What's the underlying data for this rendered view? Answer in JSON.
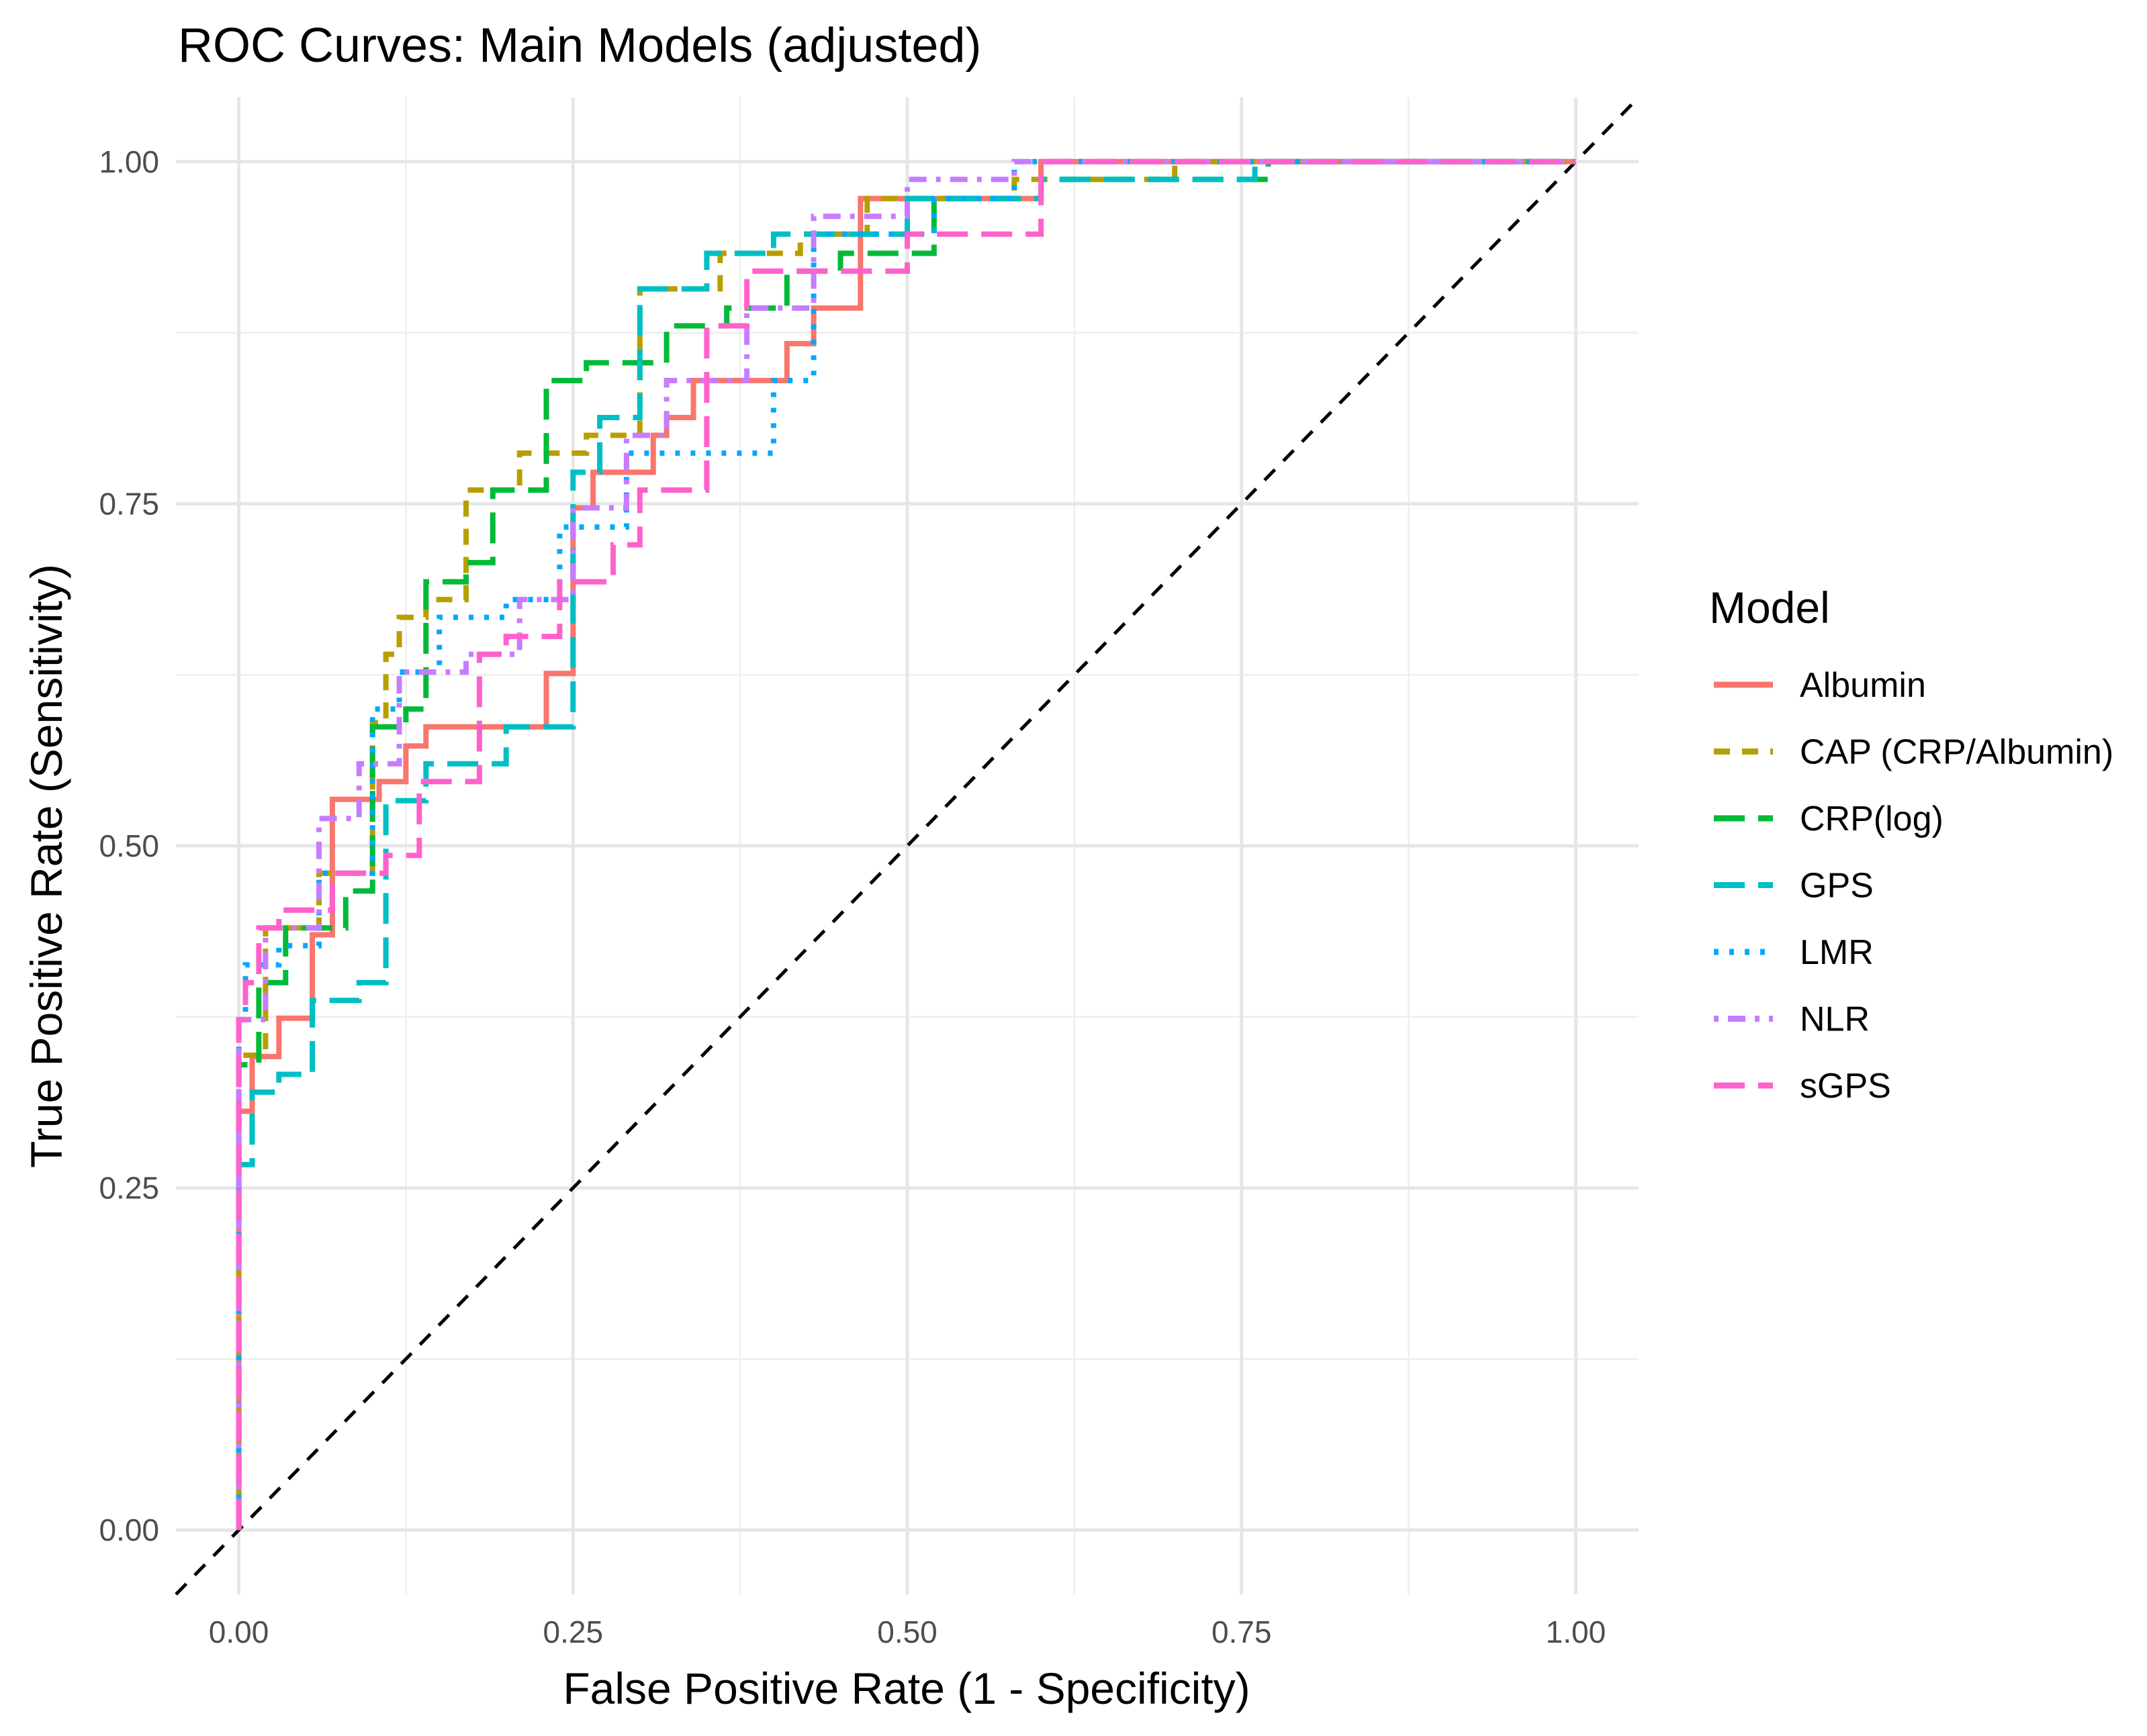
{
  "chart_data": {
    "type": "line",
    "title": "ROC Curves: Main Models (adjusted)",
    "xlabel": "False Positive Rate (1 - Specificity)",
    "ylabel": "True Positive Rate (Sensitivity)",
    "xlim": [
      -0.047,
      1.047
    ],
    "ylim": [
      -0.047,
      1.047
    ],
    "x_ticks": [
      0,
      0.25,
      0.5,
      0.75,
      1
    ],
    "x_tick_labels": [
      "0.00",
      "0.25",
      "0.50",
      "0.75",
      "1.00"
    ],
    "y_ticks": [
      0,
      0.25,
      0.5,
      0.75,
      1
    ],
    "y_tick_labels": [
      "0.00",
      "0.25",
      "0.50",
      "0.75",
      "1.00"
    ],
    "grid": true,
    "legend_title": "Model",
    "legend_position": "right",
    "reference_line": {
      "x": [
        -0.047,
        1.047
      ],
      "y": [
        -0.047,
        1.047
      ],
      "color": "#000000",
      "style": "dashed"
    },
    "series": [
      {
        "name": "Albumin",
        "color": "#F8766D",
        "linetype": "solid",
        "x": [
          0,
          0,
          0.01,
          0.01,
          0.03,
          0.03,
          0.055,
          0.055,
          0.07,
          0.07,
          0.105,
          0.105,
          0.125,
          0.125,
          0.14,
          0.14,
          0.23,
          0.23,
          0.25,
          0.25,
          0.265,
          0.265,
          0.31,
          0.31,
          0.32,
          0.32,
          0.34,
          0.34,
          0.41,
          0.41,
          0.43,
          0.43,
          0.465,
          0.465,
          0.6,
          0.6,
          1.0
        ],
        "y": [
          0,
          0.306,
          0.306,
          0.346,
          0.346,
          0.374,
          0.374,
          0.435,
          0.435,
          0.534,
          0.534,
          0.547,
          0.547,
          0.573,
          0.573,
          0.587,
          0.587,
          0.626,
          0.626,
          0.747,
          0.747,
          0.773,
          0.773,
          0.8,
          0.8,
          0.813,
          0.813,
          0.84,
          0.84,
          0.867,
          0.867,
          0.893,
          0.893,
          0.973,
          0.973,
          1.0,
          1.0
        ]
      },
      {
        "name": "CAP (CRP/Albumin)",
        "color": "#B79F00",
        "linetype": "dashed",
        "x": [
          0,
          0,
          0.02,
          0.02,
          0.06,
          0.06,
          0.1,
          0.1,
          0.11,
          0.11,
          0.12,
          0.12,
          0.14,
          0.14,
          0.17,
          0.17,
          0.21,
          0.21,
          0.26,
          0.26,
          0.3,
          0.3,
          0.36,
          0.36,
          0.42,
          0.42,
          0.47,
          0.47,
          0.58,
          0.58,
          0.7,
          0.7,
          1.0
        ],
        "y": [
          0,
          0.347,
          0.347,
          0.44,
          0.44,
          0.48,
          0.48,
          0.59,
          0.59,
          0.64,
          0.64,
          0.667,
          0.667,
          0.68,
          0.68,
          0.76,
          0.76,
          0.787,
          0.787,
          0.8,
          0.8,
          0.907,
          0.907,
          0.933,
          0.933,
          0.947,
          0.947,
          0.973,
          0.973,
          0.987,
          0.987,
          1.0,
          1.0
        ]
      },
      {
        "name": "CRP(log)",
        "color": "#00BA38",
        "linetype": "longdash",
        "x": [
          0,
          0,
          0.015,
          0.015,
          0.035,
          0.035,
          0.08,
          0.08,
          0.1,
          0.1,
          0.125,
          0.125,
          0.14,
          0.14,
          0.17,
          0.17,
          0.19,
          0.19,
          0.23,
          0.23,
          0.26,
          0.26,
          0.32,
          0.32,
          0.365,
          0.365,
          0.41,
          0.41,
          0.45,
          0.45,
          0.52,
          0.52,
          0.6,
          0.6,
          0.77,
          0.77,
          1.0
        ],
        "y": [
          0,
          0.34,
          0.34,
          0.4,
          0.4,
          0.44,
          0.44,
          0.467,
          0.467,
          0.587,
          0.587,
          0.6,
          0.6,
          0.693,
          0.693,
          0.707,
          0.707,
          0.76,
          0.76,
          0.84,
          0.84,
          0.853,
          0.853,
          0.88,
          0.88,
          0.893,
          0.893,
          0.92,
          0.92,
          0.933,
          0.933,
          0.973,
          0.973,
          0.987,
          0.987,
          1.0,
          1.0
        ]
      },
      {
        "name": "GPS",
        "color": "#00BFC4",
        "linetype": "longdash",
        "x": [
          0,
          0,
          0.01,
          0.01,
          0.03,
          0.03,
          0.055,
          0.055,
          0.09,
          0.09,
          0.11,
          0.11,
          0.14,
          0.14,
          0.2,
          0.2,
          0.25,
          0.25,
          0.27,
          0.27,
          0.3,
          0.3,
          0.35,
          0.35,
          0.4,
          0.4,
          0.5,
          0.5,
          0.6,
          0.6,
          0.76,
          0.76,
          1.0
        ],
        "y": [
          0,
          0.267,
          0.267,
          0.32,
          0.32,
          0.333,
          0.333,
          0.387,
          0.387,
          0.4,
          0.4,
          0.533,
          0.533,
          0.56,
          0.56,
          0.587,
          0.587,
          0.773,
          0.773,
          0.813,
          0.813,
          0.907,
          0.907,
          0.933,
          0.933,
          0.947,
          0.947,
          0.973,
          0.973,
          0.987,
          0.987,
          1.0,
          1.0
        ]
      },
      {
        "name": "LMR",
        "color": "#00A9FF",
        "linetype": "dotted",
        "x": [
          0,
          0,
          0.005,
          0.005,
          0.03,
          0.03,
          0.06,
          0.06,
          0.1,
          0.1,
          0.12,
          0.12,
          0.15,
          0.15,
          0.2,
          0.2,
          0.24,
          0.24,
          0.29,
          0.29,
          0.32,
          0.32,
          0.4,
          0.4,
          0.43,
          0.43,
          0.52,
          0.52,
          0.58,
          0.58,
          1.0
        ],
        "y": [
          0,
          0.373,
          0.373,
          0.413,
          0.413,
          0.427,
          0.427,
          0.48,
          0.48,
          0.6,
          0.6,
          0.627,
          0.627,
          0.667,
          0.667,
          0.68,
          0.68,
          0.733,
          0.733,
          0.787,
          0.787,
          0.787,
          0.787,
          0.84,
          0.84,
          0.947,
          0.947,
          0.973,
          0.973,
          1.0,
          1.0
        ]
      },
      {
        "name": "NLR",
        "color": "#C77CFF",
        "linetype": "dotdash",
        "x": [
          0,
          0,
          0.02,
          0.02,
          0.06,
          0.06,
          0.09,
          0.09,
          0.12,
          0.12,
          0.17,
          0.17,
          0.21,
          0.21,
          0.25,
          0.25,
          0.29,
          0.29,
          0.32,
          0.32,
          0.38,
          0.38,
          0.43,
          0.43,
          0.5,
          0.5,
          0.58,
          0.58,
          1.0
        ],
        "y": [
          0,
          0.373,
          0.373,
          0.44,
          0.44,
          0.52,
          0.52,
          0.56,
          0.56,
          0.627,
          0.627,
          0.64,
          0.64,
          0.68,
          0.68,
          0.747,
          0.747,
          0.8,
          0.8,
          0.84,
          0.84,
          0.893,
          0.893,
          0.96,
          0.96,
          0.987,
          0.987,
          1.0,
          1.0
        ]
      },
      {
        "name": "sGPS",
        "color": "#FF61CC",
        "linetype": "longdash",
        "x": [
          0,
          0,
          0.005,
          0.005,
          0.015,
          0.015,
          0.03,
          0.03,
          0.07,
          0.07,
          0.11,
          0.11,
          0.135,
          0.135,
          0.18,
          0.18,
          0.2,
          0.2,
          0.24,
          0.24,
          0.28,
          0.28,
          0.3,
          0.3,
          0.35,
          0.35,
          0.38,
          0.38,
          0.5,
          0.5,
          0.6,
          0.6,
          1.0
        ],
        "y": [
          0,
          0.373,
          0.373,
          0.4,
          0.4,
          0.44,
          0.44,
          0.453,
          0.453,
          0.48,
          0.48,
          0.493,
          0.493,
          0.547,
          0.547,
          0.64,
          0.64,
          0.653,
          0.653,
          0.693,
          0.693,
          0.72,
          0.72,
          0.76,
          0.76,
          0.88,
          0.88,
          0.92,
          0.92,
          0.947,
          0.947,
          1.0,
          1.0
        ]
      }
    ]
  }
}
